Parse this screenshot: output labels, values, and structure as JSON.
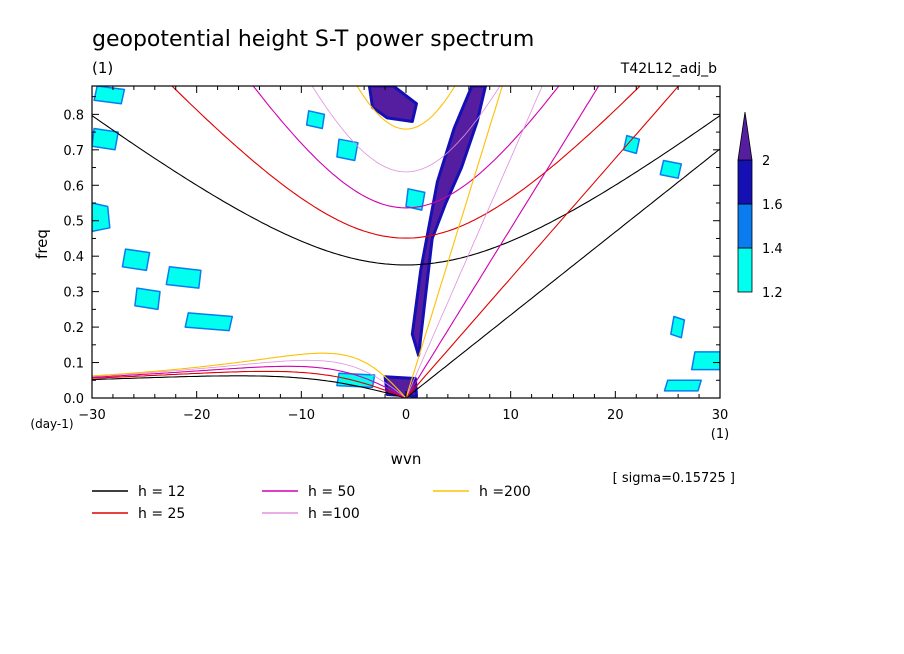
{
  "chart_data": {
    "type": "heatmap",
    "title": "geopotential height S-T power spectrum",
    "subtitle_left": "(1)",
    "subtitle_right": "T42L12_adj_b",
    "xlabel": "wvn",
    "ylabel": "freq",
    "x_unit": "(1)",
    "y_unit": "(day-1)",
    "xlim": [
      -30,
      30
    ],
    "ylim": [
      0,
      0.88
    ],
    "x_ticks": [
      -30,
      -20,
      -10,
      0,
      10,
      20,
      30
    ],
    "x_tick_labels": [
      "-30",
      "-20",
      "-10",
      "0",
      "10",
      "20",
      "30"
    ],
    "y_ticks": [
      0,
      0.1,
      0.2,
      0.3,
      0.4,
      0.5,
      0.6,
      0.7,
      0.8
    ],
    "y_tick_labels": [
      "0.0",
      "0.1",
      "0.2",
      "0.3",
      "0.4",
      "0.5",
      "0.6",
      "0.7",
      "0.8"
    ],
    "annotation": "[ sigma=0.15725 ]",
    "colorbar": {
      "levels": [
        1.2,
        1.4,
        1.6,
        2
      ],
      "labels": [
        "1.2",
        "1.4",
        "1.6",
        "2"
      ],
      "colors": [
        "#00ffee",
        "#0a7cf0",
        "#1410b4",
        "#551ea0"
      ]
    },
    "dispersion_curves": [
      {
        "label": "h = 12",
        "h": 12,
        "color": "#000000"
      },
      {
        "label": "h = 25",
        "h": 25,
        "color": "#e00000"
      },
      {
        "label": "h = 50",
        "h": 50,
        "color": "#d000b0"
      },
      {
        "label": "h =100",
        "h": 100,
        "color": "#e090e0"
      },
      {
        "label": "h =200",
        "h": 200,
        "color": "#ffc000"
      }
    ],
    "regions": [
      {
        "level": 2,
        "x": [
          2.5,
          3.8,
          5.3,
          6.8,
          7.6,
          6.3,
          4.6,
          3.0,
          1.4,
          0.6,
          1.2
        ],
        "y": [
          0.45,
          0.55,
          0.65,
          0.78,
          0.88,
          0.88,
          0.76,
          0.61,
          0.36,
          0.18,
          0.12
        ]
      },
      {
        "level": 2,
        "x": [
          -3.5,
          -1.2,
          1.0,
          0.6,
          -1.8,
          -3.2
        ],
        "y": [
          0.88,
          0.88,
          0.83,
          0.78,
          0.79,
          0.82
        ]
      },
      {
        "level": 2,
        "x": [
          -2.0,
          0.9,
          1.0,
          -1.8
        ],
        "y": [
          0.06,
          0.055,
          0.005,
          0.01
        ]
      },
      {
        "level": 1.2,
        "x": [
          -30,
          -28.5,
          -28.3,
          -30
        ],
        "y": [
          0.55,
          0.54,
          0.48,
          0.47
        ]
      },
      {
        "level": 1.2,
        "x": [
          -26.8,
          -24.5,
          -24.8,
          -27.1
        ],
        "y": [
          0.42,
          0.41,
          0.36,
          0.37
        ]
      },
      {
        "level": 1.2,
        "x": [
          -22.6,
          -19.6,
          -19.8,
          -22.9
        ],
        "y": [
          0.37,
          0.36,
          0.31,
          0.32
        ]
      },
      {
        "level": 1.2,
        "x": [
          -25.7,
          -23.5,
          -23.7,
          -25.9
        ],
        "y": [
          0.31,
          0.3,
          0.25,
          0.26
        ]
      },
      {
        "level": 1.2,
        "x": [
          -20.8,
          -16.6,
          -16.9,
          -21.1
        ],
        "y": [
          0.24,
          0.23,
          0.19,
          0.2
        ]
      },
      {
        "level": 1.2,
        "x": [
          -29.5,
          -26.9,
          -27.2,
          -29.8
        ],
        "y": [
          0.88,
          0.87,
          0.83,
          0.84
        ]
      },
      {
        "level": 1.2,
        "x": [
          -29.8,
          -27.5,
          -27.8,
          -30
        ],
        "y": [
          0.76,
          0.75,
          0.7,
          0.71
        ]
      },
      {
        "level": 1.2,
        "x": [
          -9.3,
          -7.8,
          -8.0,
          -9.5
        ],
        "y": [
          0.81,
          0.8,
          0.76,
          0.77
        ]
      },
      {
        "level": 1.2,
        "x": [
          -6.4,
          -4.6,
          -4.9,
          -6.6
        ],
        "y": [
          0.73,
          0.72,
          0.67,
          0.68
        ]
      },
      {
        "level": 1.2,
        "x": [
          0.2,
          1.8,
          1.5,
          0.0
        ],
        "y": [
          0.59,
          0.58,
          0.53,
          0.54
        ]
      },
      {
        "level": 1.2,
        "x": [
          24.6,
          26.3,
          26.0,
          24.3
        ],
        "y": [
          0.67,
          0.66,
          0.62,
          0.63
        ]
      },
      {
        "level": 1.2,
        "x": [
          27.6,
          30,
          30,
          27.3
        ],
        "y": [
          0.13,
          0.13,
          0.08,
          0.08
        ]
      },
      {
        "level": 1.2,
        "x": [
          25.0,
          28.2,
          27.9,
          24.7
        ],
        "y": [
          0.05,
          0.05,
          0.02,
          0.02
        ]
      },
      {
        "level": 1.2,
        "x": [
          25.6,
          26.6,
          26.3,
          25.3
        ],
        "y": [
          0.23,
          0.22,
          0.17,
          0.18
        ]
      },
      {
        "level": 1.2,
        "x": [
          21.1,
          22.3,
          22.0,
          20.8
        ],
        "y": [
          0.74,
          0.73,
          0.69,
          0.7
        ]
      },
      {
        "level": 1.2,
        "x": [
          -6.4,
          -3.0,
          -3.2,
          -6.6
        ],
        "y": [
          0.07,
          0.065,
          0.03,
          0.035
        ]
      }
    ]
  }
}
